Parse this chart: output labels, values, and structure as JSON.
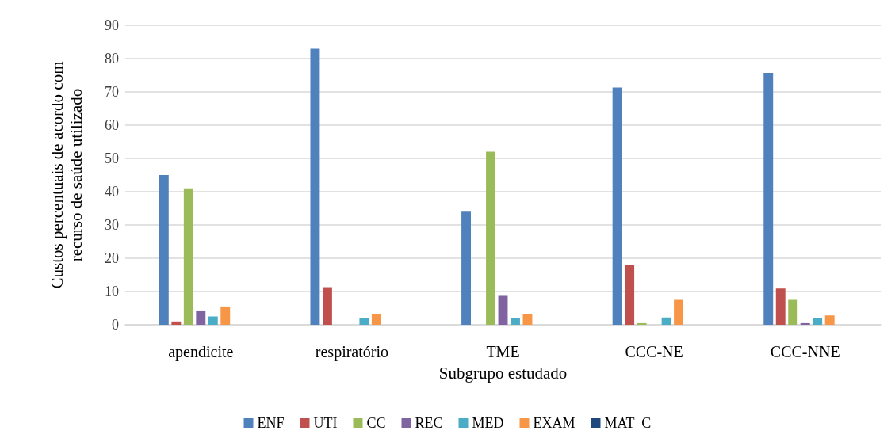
{
  "chart_data": {
    "type": "bar",
    "xlabel": "Subgrupo estudado",
    "ylabel": "Custos percentuais de acordo com\nrecurso de saúde utilizado",
    "categories": [
      "apendicite",
      "respiratório",
      "TME",
      "CCC-NE",
      "CCC-NNE"
    ],
    "series": [
      {
        "name": "ENF",
        "color": "#4f81bd",
        "values": [
          45,
          83,
          34,
          71.3,
          75.7
        ]
      },
      {
        "name": "UTI",
        "color": "#c0504d",
        "values": [
          1,
          11.3,
          0,
          18,
          10.9
        ]
      },
      {
        "name": "CC",
        "color": "#9bbb59",
        "values": [
          41,
          0,
          52,
          0.5,
          7.5
        ]
      },
      {
        "name": "REC",
        "color": "#8064a2",
        "values": [
          4.3,
          0,
          8.7,
          0,
          0.5
        ]
      },
      {
        "name": "MED",
        "color": "#4bacc6",
        "values": [
          2.5,
          2,
          2,
          2.2,
          2
        ]
      },
      {
        "name": "EXAM",
        "color": "#f79646",
        "values": [
          5.5,
          3.1,
          3.2,
          7.5,
          2.8
        ]
      },
      {
        "name": "MAT  C",
        "color": "#1f497d",
        "values": [
          0,
          0,
          0,
          0,
          0
        ]
      }
    ],
    "ylim": [
      0,
      90
    ],
    "yticks": [
      0,
      10,
      20,
      30,
      40,
      50,
      60,
      70,
      80,
      90
    ],
    "grid": "y",
    "legend": "bottom"
  }
}
